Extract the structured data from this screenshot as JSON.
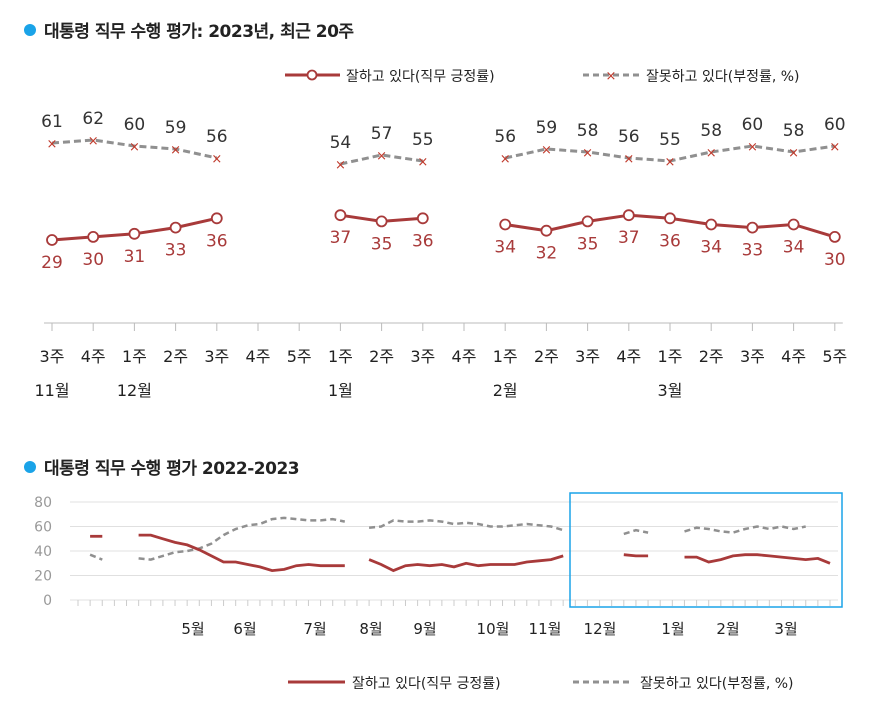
{
  "chart_data": [
    {
      "type": "line",
      "title": "대통령 직무 수행 평가: 2023년, 최근 20주",
      "categories": [
        "3주",
        "4주",
        "1주",
        "2주",
        "3주",
        "4주",
        "5주",
        "1주",
        "2주",
        "3주",
        "4주",
        "1주",
        "2주",
        "3주",
        "4주",
        "1주",
        "2주",
        "3주",
        "4주",
        "5주"
      ],
      "month_labels": [
        {
          "index": 0,
          "label": "11월"
        },
        {
          "index": 2,
          "label": "12월"
        },
        {
          "index": 7,
          "label": "1월"
        },
        {
          "index": 11,
          "label": "2월"
        },
        {
          "index": 15,
          "label": "3월"
        }
      ],
      "series": [
        {
          "name": "잘하고 있다(직무 긍정률)",
          "color": "#a83a3a",
          "style": "solid-circle",
          "values": [
            29,
            30,
            31,
            33,
            36,
            null,
            null,
            37,
            35,
            36,
            null,
            34,
            32,
            35,
            37,
            36,
            34,
            33,
            34,
            30
          ]
        },
        {
          "name": "잘못하고 있다(부정률, %)",
          "color": "#909090",
          "style": "dashed-x",
          "values": [
            61,
            62,
            60,
            59,
            56,
            null,
            null,
            54,
            57,
            55,
            null,
            56,
            59,
            58,
            56,
            55,
            58,
            60,
            58,
            60
          ]
        }
      ],
      "legend_position": "top-right",
      "grid": false
    },
    {
      "type": "line",
      "title": "대통령 직무 수행 평가 2022-2023",
      "ylim": [
        0,
        80
      ],
      "yticks": [
        0,
        20,
        40,
        60,
        80
      ],
      "month_labels": [
        "5월",
        "6월",
        "7월",
        "8월",
        "9월",
        "10월",
        "11월",
        "12월",
        "1월",
        "2월",
        "3월"
      ],
      "series": [
        {
          "name": "잘하고 있다(직무 긍정률)",
          "color": "#a83a3a",
          "style": "solid",
          "values": [
            null,
            52,
            52,
            null,
            null,
            53,
            53,
            50,
            47,
            45,
            41,
            36,
            31,
            31,
            29,
            27,
            24,
            25,
            28,
            29,
            28,
            28,
            28,
            null,
            33,
            29,
            24,
            28,
            29,
            28,
            29,
            27,
            30,
            28,
            29,
            29,
            29,
            31,
            32,
            33,
            36,
            null,
            null,
            null,
            null,
            37,
            36,
            36,
            null,
            null,
            35,
            35,
            31,
            33,
            36,
            37,
            37,
            36,
            35,
            34,
            33,
            34,
            30
          ],
          "segments_note": "gaps at holidays"
        },
        {
          "name": "잘못하고 있다(부정률, %)",
          "color": "#909090",
          "style": "dashed",
          "values": [
            null,
            37,
            33,
            null,
            null,
            34,
            33,
            36,
            39,
            40,
            42,
            46,
            53,
            58,
            61,
            62,
            66,
            67,
            66,
            65,
            65,
            66,
            64,
            null,
            59,
            60,
            65,
            64,
            64,
            65,
            64,
            62,
            63,
            62,
            60,
            60,
            61,
            62,
            61,
            60,
            57,
            null,
            null,
            null,
            null,
            54,
            57,
            55,
            null,
            null,
            56,
            59,
            58,
            56,
            55,
            58,
            60,
            58,
            60,
            58,
            60,
            null,
            null
          ]
        }
      ],
      "highlight_box": "recent 20 weeks",
      "legend_position": "bottom-right",
      "grid": true
    }
  ],
  "legend": {
    "positive": "잘하고 있다(직무 긍정률)",
    "negative": "잘못하고 있다(부정률, %)"
  }
}
